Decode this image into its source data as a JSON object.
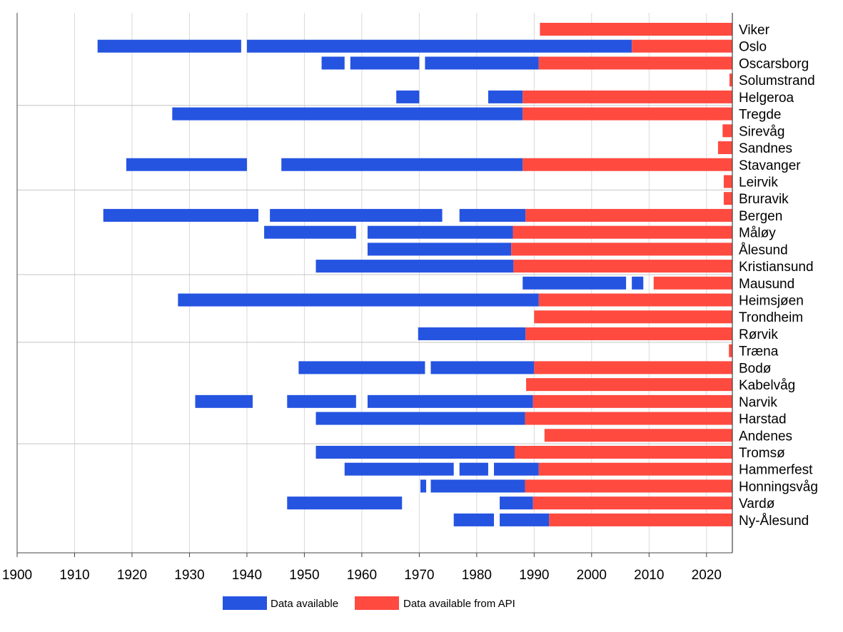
{
  "chart_data": {
    "type": "timeline",
    "title": "",
    "xlabel": "",
    "ylabel": "",
    "xlim": [
      1900,
      2024.5
    ],
    "xticks": [
      1900,
      1910,
      1920,
      1930,
      1940,
      1950,
      1960,
      1970,
      1980,
      1990,
      2000,
      2010,
      2020
    ],
    "grid": "vertical",
    "group_separators_after": [
      "Helgeroa",
      "Leirvik",
      "Kristiansund",
      "Rørvik",
      "Andenes"
    ],
    "legend_position": "bottom",
    "series": [
      {
        "name": "Data available",
        "color": "#2554e1"
      },
      {
        "name": "Data available from API",
        "color": "#ff4a40"
      }
    ],
    "stations": [
      {
        "name": "Viker",
        "available": [],
        "api": [
          [
            1991.0,
            2024.5
          ]
        ]
      },
      {
        "name": "Oslo",
        "available": [
          [
            1914.0,
            1939.0
          ],
          [
            1940.0,
            2007.0
          ]
        ],
        "api": [
          [
            2007.0,
            2024.5
          ]
        ]
      },
      {
        "name": "Oscarsborg",
        "available": [
          [
            1953.0,
            1957.0
          ],
          [
            1958.0,
            1970.0
          ],
          [
            1971.0,
            1990.8
          ]
        ],
        "api": [
          [
            1990.8,
            2024.5
          ]
        ]
      },
      {
        "name": "Solumstrand",
        "available": [],
        "api": [
          [
            2024.0,
            2024.5
          ]
        ]
      },
      {
        "name": "Helgeroa",
        "available": [
          [
            1966.0,
            1970.0
          ],
          [
            1982.0,
            1988.0
          ]
        ],
        "api": [
          [
            1988.0,
            2024.5
          ]
        ]
      },
      {
        "name": "Tregde",
        "available": [
          [
            1927.0,
            1988.0
          ]
        ],
        "api": [
          [
            1988.0,
            2024.5
          ]
        ]
      },
      {
        "name": "Sirevåg",
        "available": [],
        "api": [
          [
            2022.8,
            2024.5
          ]
        ]
      },
      {
        "name": "Sandnes",
        "available": [],
        "api": [
          [
            2022.0,
            2024.5
          ]
        ]
      },
      {
        "name": "Stavanger",
        "available": [
          [
            1919.0,
            1940.0
          ],
          [
            1946.0,
            1988.0
          ]
        ],
        "api": [
          [
            1988.0,
            2024.5
          ]
        ]
      },
      {
        "name": "Leirvik",
        "available": [],
        "api": [
          [
            2023.0,
            2024.5
          ]
        ]
      },
      {
        "name": "Bruravik",
        "available": [],
        "api": [
          [
            2023.0,
            2024.5
          ]
        ]
      },
      {
        "name": "Bergen",
        "available": [
          [
            1915.0,
            1942.0
          ],
          [
            1944.0,
            1974.0
          ],
          [
            1977.0,
            1988.5
          ]
        ],
        "api": [
          [
            1988.5,
            2024.5
          ]
        ]
      },
      {
        "name": "Måløy",
        "available": [
          [
            1943.0,
            1959.0
          ],
          [
            1961.0,
            1986.3
          ]
        ],
        "api": [
          [
            1986.3,
            2024.5
          ]
        ]
      },
      {
        "name": "Ålesund",
        "available": [
          [
            1961.0,
            1986.0
          ]
        ],
        "api": [
          [
            1986.0,
            2024.5
          ]
        ]
      },
      {
        "name": "Kristiansund",
        "available": [
          [
            1952.0,
            1986.4
          ]
        ],
        "api": [
          [
            1986.4,
            2024.5
          ]
        ]
      },
      {
        "name": "Mausund",
        "available": [
          [
            1988.0,
            2006.0
          ],
          [
            2007.0,
            2009.0
          ]
        ],
        "api": [
          [
            2010.8,
            2024.5
          ]
        ]
      },
      {
        "name": "Heimsjøen",
        "available": [
          [
            1928.0,
            1990.8
          ]
        ],
        "api": [
          [
            1990.8,
            2024.5
          ]
        ]
      },
      {
        "name": "Trondheim",
        "available": [],
        "api": [
          [
            1990.0,
            2024.5
          ]
        ]
      },
      {
        "name": "Rørvik",
        "available": [
          [
            1969.8,
            1988.5
          ]
        ],
        "api": [
          [
            1988.5,
            2024.5
          ]
        ]
      },
      {
        "name": "Træna",
        "available": [],
        "api": [
          [
            2023.9,
            2024.5
          ]
        ]
      },
      {
        "name": "Bodø",
        "available": [
          [
            1949.0,
            1971.0
          ],
          [
            1972.0,
            1990.0
          ]
        ],
        "api": [
          [
            1990.0,
            2024.5
          ]
        ]
      },
      {
        "name": "Kabelvåg",
        "available": [],
        "api": [
          [
            1988.6,
            2024.5
          ]
        ]
      },
      {
        "name": "Narvik",
        "available": [
          [
            1931.0,
            1941.0
          ],
          [
            1947.0,
            1959.0
          ],
          [
            1961.0,
            1989.8
          ]
        ],
        "api": [
          [
            1989.8,
            2024.5
          ]
        ]
      },
      {
        "name": "Harstad",
        "available": [
          [
            1952.0,
            1988.4
          ]
        ],
        "api": [
          [
            1988.4,
            2024.5
          ]
        ]
      },
      {
        "name": "Andenes",
        "available": [],
        "api": [
          [
            1991.8,
            2024.5
          ]
        ]
      },
      {
        "name": "Tromsø",
        "available": [
          [
            1952.0,
            1986.6
          ]
        ],
        "api": [
          [
            1986.6,
            2024.5
          ]
        ]
      },
      {
        "name": "Hammerfest",
        "available": [
          [
            1957.0,
            1976.0
          ],
          [
            1977.0,
            1982.0
          ],
          [
            1983.0,
            1990.8
          ]
        ],
        "api": [
          [
            1990.8,
            2024.5
          ]
        ]
      },
      {
        "name": "Honningsvåg",
        "available": [
          [
            1970.2,
            1971.2
          ],
          [
            1972.0,
            1988.4
          ]
        ],
        "api": [
          [
            1988.4,
            2024.5
          ]
        ]
      },
      {
        "name": "Vardø",
        "available": [
          [
            1947.0,
            1967.0
          ],
          [
            1984.0,
            1989.8
          ]
        ],
        "api": [
          [
            1989.8,
            2024.5
          ]
        ]
      },
      {
        "name": "Ny-Ålesund",
        "available": [
          [
            1976.0,
            1983.0
          ],
          [
            1984.0,
            1992.6
          ]
        ],
        "api": [
          [
            1992.6,
            2024.5
          ]
        ]
      }
    ]
  }
}
